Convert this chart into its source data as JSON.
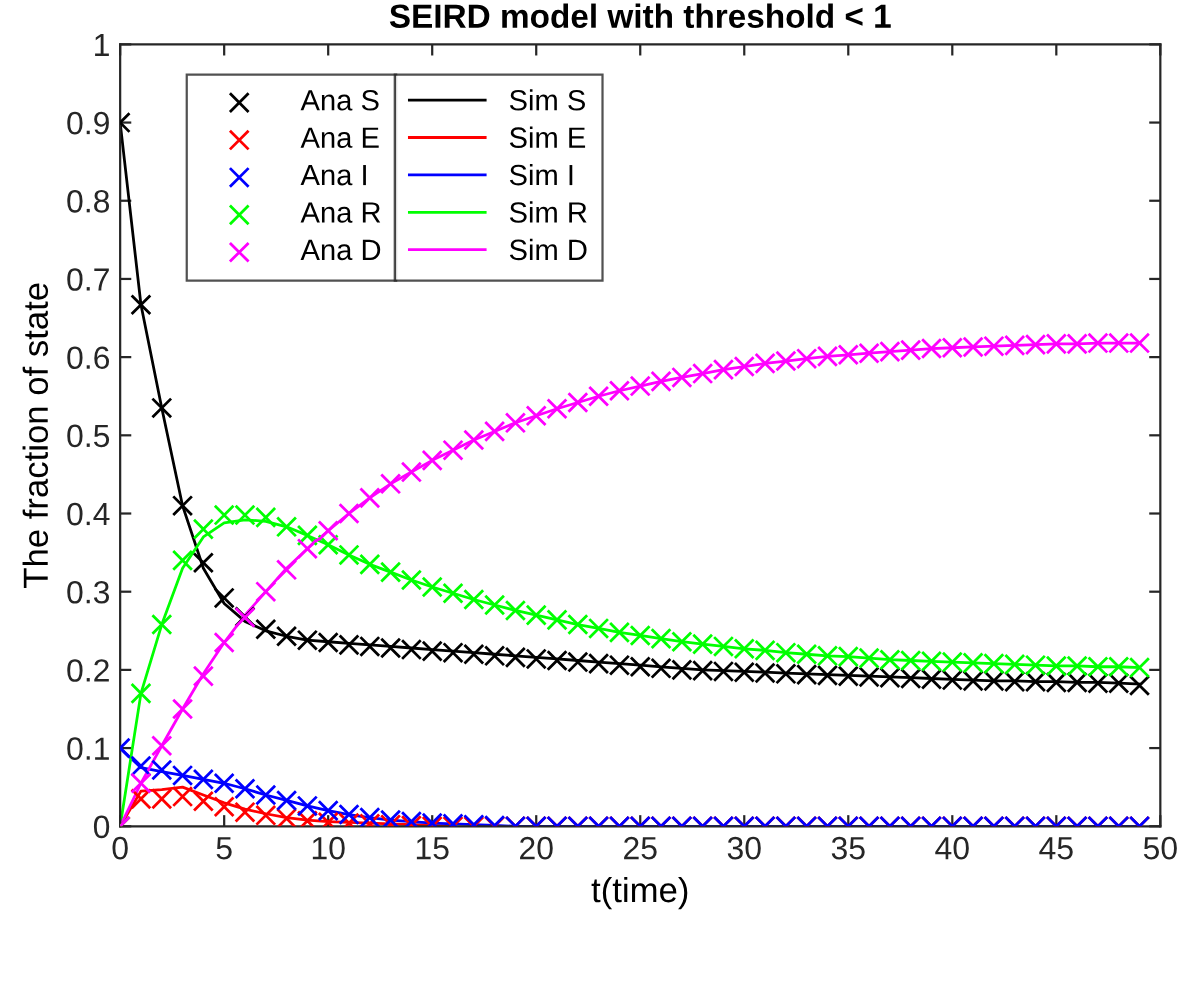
{
  "chart_data": {
    "type": "line",
    "title": "SEIRD model with threshold < 1",
    "xlabel": "t(time)",
    "ylabel": "The fraction of state",
    "xlim": [
      0,
      50
    ],
    "ylim": [
      0,
      1
    ],
    "xticks": [
      0,
      5,
      10,
      15,
      20,
      25,
      30,
      35,
      40,
      45,
      50
    ],
    "yticks": [
      0,
      0.1,
      0.2,
      0.3,
      0.4,
      0.5,
      0.6,
      0.7,
      0.8,
      0.9,
      1
    ],
    "grid": false,
    "legend": "top left",
    "x": [
      0,
      1,
      2,
      3,
      4,
      5,
      6,
      7,
      8,
      9,
      10,
      11,
      12,
      13,
      14,
      15,
      16,
      17,
      18,
      19,
      20,
      21,
      22,
      23,
      24,
      25,
      26,
      27,
      28,
      29,
      30,
      31,
      32,
      33,
      34,
      35,
      36,
      37,
      38,
      39,
      40,
      41,
      42,
      43,
      44,
      45,
      46,
      47,
      48,
      49
    ],
    "series": [
      {
        "name": "Ana S",
        "type": "scatter",
        "marker": "cross",
        "color": "#000000",
        "values": [
          0.9,
          0.667,
          0.535,
          0.41,
          0.337,
          0.292,
          0.268,
          0.252,
          0.243,
          0.238,
          0.235,
          0.232,
          0.23,
          0.228,
          0.226,
          0.224,
          0.222,
          0.22,
          0.218,
          0.216,
          0.214,
          0.212,
          0.21,
          0.208,
          0.206,
          0.204,
          0.202,
          0.2,
          0.199,
          0.198,
          0.197,
          0.196,
          0.195,
          0.194,
          0.193,
          0.192,
          0.191,
          0.19,
          0.189,
          0.188,
          0.187,
          0.186,
          0.186,
          0.185,
          0.185,
          0.184,
          0.184,
          0.183,
          0.183,
          0.18
        ]
      },
      {
        "name": "Ana E",
        "type": "scatter",
        "marker": "cross",
        "color": "#ff0000",
        "values": [
          0,
          0.035,
          0.035,
          0.038,
          0.032,
          0.025,
          0.018,
          0.014,
          0.01,
          0.007,
          0.005,
          0.004,
          0.003,
          0.002,
          0.001,
          0,
          0,
          0,
          0,
          0,
          0,
          0,
          0,
          0,
          0,
          0,
          0,
          0,
          0,
          0,
          0,
          0,
          0,
          0,
          0,
          0,
          0,
          0,
          0,
          0,
          0,
          0,
          0,
          0,
          0,
          0,
          0,
          0,
          0,
          0
        ]
      },
      {
        "name": "Ana I",
        "type": "scatter",
        "marker": "cross",
        "color": "#0000ff",
        "values": [
          0.1,
          0.077,
          0.072,
          0.065,
          0.06,
          0.055,
          0.048,
          0.04,
          0.033,
          0.026,
          0.02,
          0.015,
          0.011,
          0.008,
          0.006,
          0.004,
          0.003,
          0.002,
          0.001,
          0,
          0,
          0,
          0,
          0,
          0,
          0,
          0,
          0,
          0,
          0,
          0,
          0,
          0,
          0,
          0,
          0,
          0,
          0,
          0,
          0,
          0,
          0,
          0,
          0,
          0,
          0,
          0,
          0,
          0,
          0
        ]
      },
      {
        "name": "Ana R",
        "type": "scatter",
        "marker": "cross",
        "color": "#00ff00",
        "values": [
          0,
          0.17,
          0.258,
          0.34,
          0.38,
          0.398,
          0.398,
          0.395,
          0.383,
          0.372,
          0.36,
          0.347,
          0.335,
          0.325,
          0.315,
          0.306,
          0.298,
          0.29,
          0.283,
          0.276,
          0.27,
          0.264,
          0.258,
          0.253,
          0.248,
          0.244,
          0.24,
          0.236,
          0.233,
          0.23,
          0.227,
          0.225,
          0.222,
          0.22,
          0.218,
          0.217,
          0.215,
          0.213,
          0.212,
          0.211,
          0.21,
          0.209,
          0.208,
          0.207,
          0.206,
          0.205,
          0.205,
          0.204,
          0.204,
          0.203
        ]
      },
      {
        "name": "Ana D",
        "type": "scatter",
        "marker": "cross",
        "color": "#ff00ff",
        "values": [
          0,
          0.055,
          0.103,
          0.15,
          0.192,
          0.235,
          0.267,
          0.3,
          0.328,
          0.355,
          0.378,
          0.4,
          0.42,
          0.438,
          0.453,
          0.468,
          0.481,
          0.494,
          0.505,
          0.516,
          0.525,
          0.534,
          0.542,
          0.55,
          0.557,
          0.563,
          0.569,
          0.574,
          0.579,
          0.584,
          0.588,
          0.592,
          0.595,
          0.598,
          0.601,
          0.603,
          0.605,
          0.607,
          0.609,
          0.611,
          0.612,
          0.613,
          0.614,
          0.615,
          0.616,
          0.617,
          0.617,
          0.618,
          0.618,
          0.618
        ]
      },
      {
        "name": "Sim S",
        "type": "line",
        "marker": "none",
        "color": "#000000",
        "values": [
          0.9,
          0.667,
          0.535,
          0.41,
          0.33,
          0.285,
          0.262,
          0.25,
          0.243,
          0.238,
          0.236,
          0.234,
          0.232,
          0.23,
          0.228,
          0.226,
          0.224,
          0.222,
          0.22,
          0.218,
          0.216,
          0.214,
          0.212,
          0.21,
          0.208,
          0.206,
          0.204,
          0.202,
          0.2,
          0.199,
          0.198,
          0.197,
          0.196,
          0.195,
          0.194,
          0.193,
          0.192,
          0.191,
          0.19,
          0.189,
          0.188,
          0.187,
          0.186,
          0.186,
          0.185,
          0.185,
          0.184,
          0.184,
          0.183,
          0.182
        ]
      },
      {
        "name": "Sim E",
        "type": "line",
        "marker": "none",
        "color": "#ff0000",
        "values": [
          0,
          0.045,
          0.047,
          0.05,
          0.04,
          0.03,
          0.022,
          0.016,
          0.011,
          0.008,
          0.006,
          0.005,
          0.004,
          0.003,
          0.002,
          0.001,
          0,
          null,
          null,
          null,
          null,
          null,
          null,
          null,
          null,
          null,
          null,
          null,
          null,
          null,
          null,
          null,
          null,
          null,
          null,
          null,
          null,
          null,
          null,
          null,
          null,
          null,
          null,
          null,
          null,
          null,
          null,
          null,
          null,
          null
        ]
      },
      {
        "name": "Sim I",
        "type": "line",
        "marker": "none",
        "color": "#0000ff",
        "values": [
          0.1,
          0.075,
          0.07,
          0.065,
          0.06,
          0.055,
          0.048,
          0.04,
          0.033,
          0.026,
          0.02,
          0.015,
          0.011,
          0.008,
          0.006,
          0.004,
          0.003,
          0.002,
          0.001,
          0,
          0,
          0,
          0,
          0,
          0,
          0,
          0,
          0,
          0,
          0,
          0,
          0,
          0,
          0,
          0,
          0,
          0,
          0,
          0,
          0,
          0,
          0,
          0,
          0,
          0,
          0,
          0,
          0,
          0,
          0
        ]
      },
      {
        "name": "Sim R",
        "type": "line",
        "marker": "none",
        "color": "#00ff00",
        "values": [
          0,
          0.17,
          0.258,
          0.33,
          0.37,
          0.388,
          0.392,
          0.39,
          0.383,
          0.372,
          0.36,
          0.347,
          0.335,
          0.325,
          0.315,
          0.306,
          0.298,
          0.29,
          0.283,
          0.276,
          0.27,
          0.264,
          0.258,
          0.253,
          0.248,
          0.244,
          0.24,
          0.236,
          0.233,
          0.23,
          0.227,
          0.225,
          0.222,
          0.22,
          0.218,
          0.217,
          0.215,
          0.213,
          0.212,
          0.211,
          0.21,
          0.209,
          0.208,
          0.207,
          0.206,
          0.205,
          0.205,
          0.204,
          0.204,
          0.203
        ]
      },
      {
        "name": "Sim D",
        "type": "line",
        "marker": "none",
        "color": "#ff00ff",
        "values": [
          0,
          0.055,
          0.103,
          0.15,
          0.195,
          0.235,
          0.27,
          0.3,
          0.33,
          0.355,
          0.378,
          0.4,
          0.42,
          0.438,
          0.453,
          0.468,
          0.481,
          0.494,
          0.505,
          0.516,
          0.525,
          0.534,
          0.542,
          0.55,
          0.557,
          0.563,
          0.569,
          0.574,
          0.579,
          0.584,
          0.588,
          0.592,
          0.595,
          0.598,
          0.601,
          0.603,
          0.605,
          0.607,
          0.609,
          0.611,
          0.612,
          0.613,
          0.614,
          0.615,
          0.616,
          0.617,
          0.617,
          0.618,
          0.618,
          0.618
        ]
      }
    ]
  }
}
